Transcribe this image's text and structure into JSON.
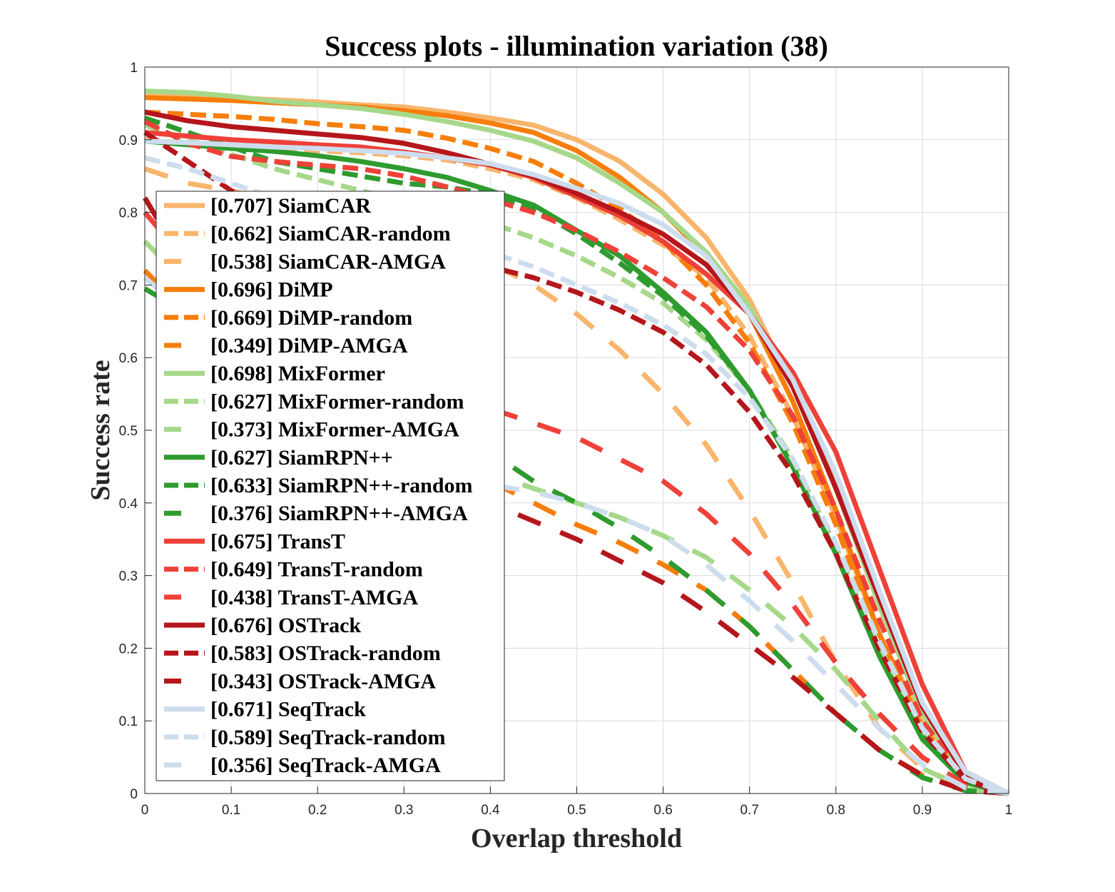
{
  "chart_data": {
    "type": "line",
    "title": "Success plots - illumination variation (38)",
    "xlabel": "Overlap threshold",
    "ylabel": "Success rate",
    "xlim": [
      0,
      1
    ],
    "ylim": [
      0,
      1
    ],
    "xticks": [
      "0",
      "0.1",
      "0.2",
      "0.3",
      "0.4",
      "0.5",
      "0.6",
      "0.7",
      "0.8",
      "0.9",
      "1"
    ],
    "yticks": [
      "0",
      "0.1",
      "0.2",
      "0.3",
      "0.4",
      "0.5",
      "0.6",
      "0.7",
      "0.8",
      "0.9",
      "1"
    ],
    "grid": true,
    "legend_position": "left",
    "x": [
      0,
      0.05,
      0.1,
      0.15,
      0.2,
      0.25,
      0.3,
      0.35,
      0.4,
      0.45,
      0.5,
      0.55,
      0.6,
      0.65,
      0.7,
      0.75,
      0.8,
      0.85,
      0.9,
      0.95,
      1
    ],
    "series": [
      {
        "label": "[0.707] SiamCAR",
        "color": "#F9B56C",
        "dash": "solid",
        "values": [
          0.965,
          0.962,
          0.958,
          0.955,
          0.952,
          0.948,
          0.945,
          0.938,
          0.93,
          0.92,
          0.9,
          0.87,
          0.825,
          0.765,
          0.68,
          0.56,
          0.43,
          0.26,
          0.12,
          0.03,
          0.0
        ]
      },
      {
        "label": "[0.662] SiamCAR-random",
        "color": "#F9B56C",
        "dash": "dash",
        "values": [
          0.9,
          0.895,
          0.89,
          0.888,
          0.885,
          0.882,
          0.878,
          0.872,
          0.86,
          0.845,
          0.82,
          0.79,
          0.755,
          0.71,
          0.63,
          0.52,
          0.38,
          0.22,
          0.1,
          0.025,
          0.0
        ]
      },
      {
        "label": "[0.538] SiamCAR-AMGA",
        "color": "#F9B56C",
        "dash": "longdash",
        "values": [
          0.86,
          0.84,
          0.83,
          0.815,
          0.8,
          0.785,
          0.77,
          0.75,
          0.73,
          0.7,
          0.66,
          0.61,
          0.55,
          0.48,
          0.39,
          0.29,
          0.18,
          0.09,
          0.035,
          0.008,
          0.0
        ]
      },
      {
        "label": "[0.696] DiMP",
        "color": "#F77E0A",
        "dash": "solid",
        "values": [
          0.958,
          0.956,
          0.954,
          0.951,
          0.948,
          0.945,
          0.94,
          0.933,
          0.923,
          0.91,
          0.885,
          0.848,
          0.8,
          0.74,
          0.66,
          0.54,
          0.39,
          0.22,
          0.09,
          0.02,
          0.0
        ]
      },
      {
        "label": "[0.669] DiMP-random",
        "color": "#F77E0A",
        "dash": "dash",
        "values": [
          0.938,
          0.935,
          0.932,
          0.928,
          0.922,
          0.918,
          0.913,
          0.902,
          0.888,
          0.87,
          0.84,
          0.805,
          0.76,
          0.7,
          0.62,
          0.51,
          0.37,
          0.21,
          0.09,
          0.02,
          0.0
        ]
      },
      {
        "label": "[0.349] DiMP-AMGA",
        "color": "#F77E0A",
        "dash": "longdash",
        "values": [
          0.72,
          0.66,
          0.62,
          0.58,
          0.54,
          0.51,
          0.48,
          0.455,
          0.43,
          0.4,
          0.37,
          0.345,
          0.315,
          0.28,
          0.23,
          0.17,
          0.11,
          0.06,
          0.025,
          0.005,
          0.0
        ]
      },
      {
        "label": "[0.698] MixFormer",
        "color": "#A6D88A",
        "dash": "solid",
        "values": [
          0.967,
          0.965,
          0.96,
          0.953,
          0.948,
          0.943,
          0.935,
          0.925,
          0.913,
          0.898,
          0.875,
          0.84,
          0.8,
          0.745,
          0.67,
          0.56,
          0.42,
          0.26,
          0.11,
          0.025,
          0.0
        ]
      },
      {
        "label": "[0.627] MixFormer-random",
        "color": "#A6D88A",
        "dash": "dash",
        "values": [
          0.92,
          0.9,
          0.88,
          0.86,
          0.845,
          0.83,
          0.815,
          0.8,
          0.785,
          0.765,
          0.74,
          0.71,
          0.675,
          0.625,
          0.555,
          0.46,
          0.34,
          0.2,
          0.08,
          0.018,
          0.0
        ]
      },
      {
        "label": "[0.373] MixFormer-AMGA",
        "color": "#A6D88A",
        "dash": "longdash",
        "values": [
          0.76,
          0.7,
          0.645,
          0.595,
          0.55,
          0.51,
          0.48,
          0.455,
          0.44,
          0.42,
          0.4,
          0.38,
          0.355,
          0.325,
          0.28,
          0.23,
          0.17,
          0.1,
          0.035,
          0.006,
          0.0
        ]
      },
      {
        "label": "[0.627] SiamRPN++",
        "color": "#2E9B2E",
        "dash": "solid",
        "values": [
          0.898,
          0.893,
          0.888,
          0.884,
          0.878,
          0.87,
          0.86,
          0.848,
          0.83,
          0.81,
          0.775,
          0.74,
          0.69,
          0.635,
          0.555,
          0.45,
          0.33,
          0.19,
          0.075,
          0.015,
          0.0
        ]
      },
      {
        "label": "[0.633] SiamRPN++-random",
        "color": "#2E9B2E",
        "dash": "dash",
        "values": [
          0.93,
          0.91,
          0.89,
          0.87,
          0.86,
          0.85,
          0.84,
          0.835,
          0.825,
          0.805,
          0.77,
          0.73,
          0.685,
          0.63,
          0.555,
          0.45,
          0.33,
          0.19,
          0.08,
          0.018,
          0.0
        ]
      },
      {
        "label": "[0.376] SiamRPN++-AMGA",
        "color": "#2E9B2E",
        "dash": "longdash",
        "values": [
          0.695,
          0.66,
          0.63,
          0.61,
          0.59,
          0.56,
          0.53,
          0.5,
          0.47,
          0.43,
          0.4,
          0.365,
          0.325,
          0.28,
          0.23,
          0.17,
          0.11,
          0.06,
          0.022,
          0.004,
          0.0
        ]
      },
      {
        "label": "[0.675] TransT",
        "color": "#EE4138",
        "dash": "solid",
        "values": [
          0.91,
          0.905,
          0.9,
          0.897,
          0.893,
          0.89,
          0.883,
          0.875,
          0.865,
          0.848,
          0.822,
          0.795,
          0.76,
          0.715,
          0.66,
          0.58,
          0.47,
          0.31,
          0.15,
          0.03,
          0.0
        ]
      },
      {
        "label": "[0.649] TransT-random",
        "color": "#EE4138",
        "dash": "dash",
        "values": [
          0.925,
          0.895,
          0.877,
          0.87,
          0.865,
          0.86,
          0.85,
          0.835,
          0.818,
          0.8,
          0.775,
          0.745,
          0.71,
          0.67,
          0.61,
          0.52,
          0.39,
          0.24,
          0.1,
          0.022,
          0.0
        ]
      },
      {
        "label": "[0.438] TransT-AMGA",
        "color": "#EE4138",
        "dash": "longdash",
        "values": [
          0.8,
          0.73,
          0.68,
          0.64,
          0.605,
          0.58,
          0.56,
          0.545,
          0.53,
          0.51,
          0.49,
          0.46,
          0.43,
          0.385,
          0.33,
          0.26,
          0.18,
          0.11,
          0.05,
          0.012,
          0.0
        ]
      },
      {
        "label": "[0.676] OSTrack",
        "color": "#B5161B",
        "dash": "solid",
        "values": [
          0.938,
          0.926,
          0.918,
          0.913,
          0.908,
          0.903,
          0.895,
          0.882,
          0.866,
          0.85,
          0.826,
          0.8,
          0.77,
          0.728,
          0.66,
          0.56,
          0.42,
          0.27,
          0.12,
          0.025,
          0.0
        ]
      },
      {
        "label": "[0.583] OSTrack-random",
        "color": "#B5161B",
        "dash": "dash",
        "values": [
          0.91,
          0.87,
          0.83,
          0.8,
          0.78,
          0.765,
          0.752,
          0.74,
          0.725,
          0.71,
          0.69,
          0.665,
          0.635,
          0.59,
          0.525,
          0.44,
          0.33,
          0.2,
          0.085,
          0.018,
          0.0
        ]
      },
      {
        "label": "[0.343] OSTrack-AMGA",
        "color": "#B5161B",
        "dash": "longdash",
        "values": [
          0.82,
          0.72,
          0.64,
          0.58,
          0.53,
          0.49,
          0.455,
          0.425,
          0.4,
          0.375,
          0.35,
          0.32,
          0.29,
          0.25,
          0.205,
          0.16,
          0.11,
          0.06,
          0.025,
          0.004,
          0.0
        ]
      },
      {
        "label": "[0.671] SeqTrack",
        "color": "#CDDDEE",
        "dash": "solid",
        "values": [
          0.898,
          0.896,
          0.893,
          0.89,
          0.888,
          0.885,
          0.881,
          0.875,
          0.867,
          0.852,
          0.833,
          0.812,
          0.783,
          0.74,
          0.66,
          0.57,
          0.44,
          0.28,
          0.125,
          0.03,
          0.0
        ]
      },
      {
        "label": "[0.589] SeqTrack-random",
        "color": "#CDDDEE",
        "dash": "dash",
        "values": [
          0.875,
          0.86,
          0.84,
          0.82,
          0.8,
          0.785,
          0.772,
          0.76,
          0.745,
          0.725,
          0.7,
          0.675,
          0.645,
          0.605,
          0.545,
          0.46,
          0.345,
          0.21,
          0.09,
          0.02,
          0.0
        ]
      },
      {
        "label": "[0.356] SeqTrack-AMGA",
        "color": "#CDDDEE",
        "dash": "longdash",
        "values": [
          0.71,
          0.66,
          0.61,
          0.57,
          0.535,
          0.5,
          0.47,
          0.445,
          0.425,
          0.415,
          0.4,
          0.38,
          0.355,
          0.315,
          0.265,
          0.21,
          0.15,
          0.09,
          0.04,
          0.008,
          0.0
        ]
      }
    ]
  }
}
